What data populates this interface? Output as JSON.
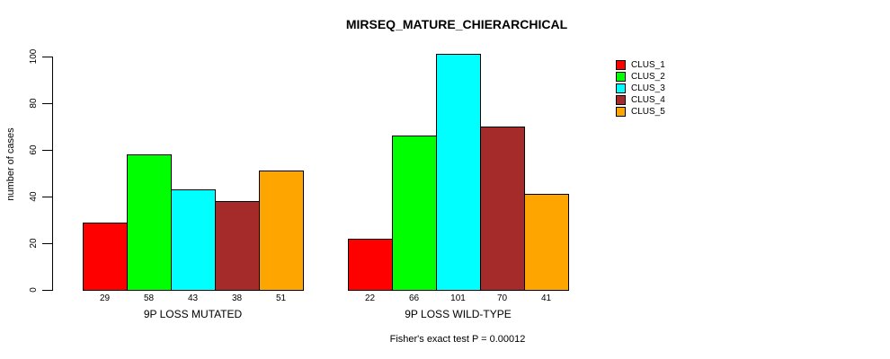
{
  "chart_data": {
    "type": "bar",
    "title": "MIRSEQ_MATURE_CHIERARCHICAL",
    "ylabel": "number of cases",
    "xlabel": "",
    "categories": [
      "9P LOSS MUTATED",
      "9P LOSS WILD-TYPE"
    ],
    "series": [
      {
        "name": "CLUS_1",
        "color": "#ff0000",
        "values": [
          29,
          22
        ]
      },
      {
        "name": "CLUS_2",
        "color": "#00ff00",
        "values": [
          58,
          66
        ]
      },
      {
        "name": "CLUS_3",
        "color": "#00ffff",
        "values": [
          43,
          101
        ]
      },
      {
        "name": "CLUS_4",
        "color": "#a52a2a",
        "values": [
          38,
          70
        ]
      },
      {
        "name": "CLUS_5",
        "color": "#ffa500",
        "values": [
          51,
          41
        ]
      }
    ],
    "yticks": [
      0,
      20,
      40,
      60,
      80,
      100
    ],
    "ylim": [
      0,
      105
    ],
    "bar_value_labels_shown": true,
    "grid": false,
    "legend_position": "right",
    "annotation": "Fisher's exact test P = 0.00012"
  },
  "title": "MIRSEQ_MATURE_CHIERARCHICAL",
  "y_axis": {
    "label": "number of cases"
  },
  "footer": "Fisher's exact test P = 0.00012",
  "legend": {
    "items": [
      {
        "label": "CLUS_1",
        "color": "#ff0000"
      },
      {
        "label": "CLUS_2",
        "color": "#00ff00"
      },
      {
        "label": "CLUS_3",
        "color": "#00ffff"
      },
      {
        "label": "CLUS_4",
        "color": "#a52a2a"
      },
      {
        "label": "CLUS_5",
        "color": "#ffa500"
      }
    ]
  }
}
